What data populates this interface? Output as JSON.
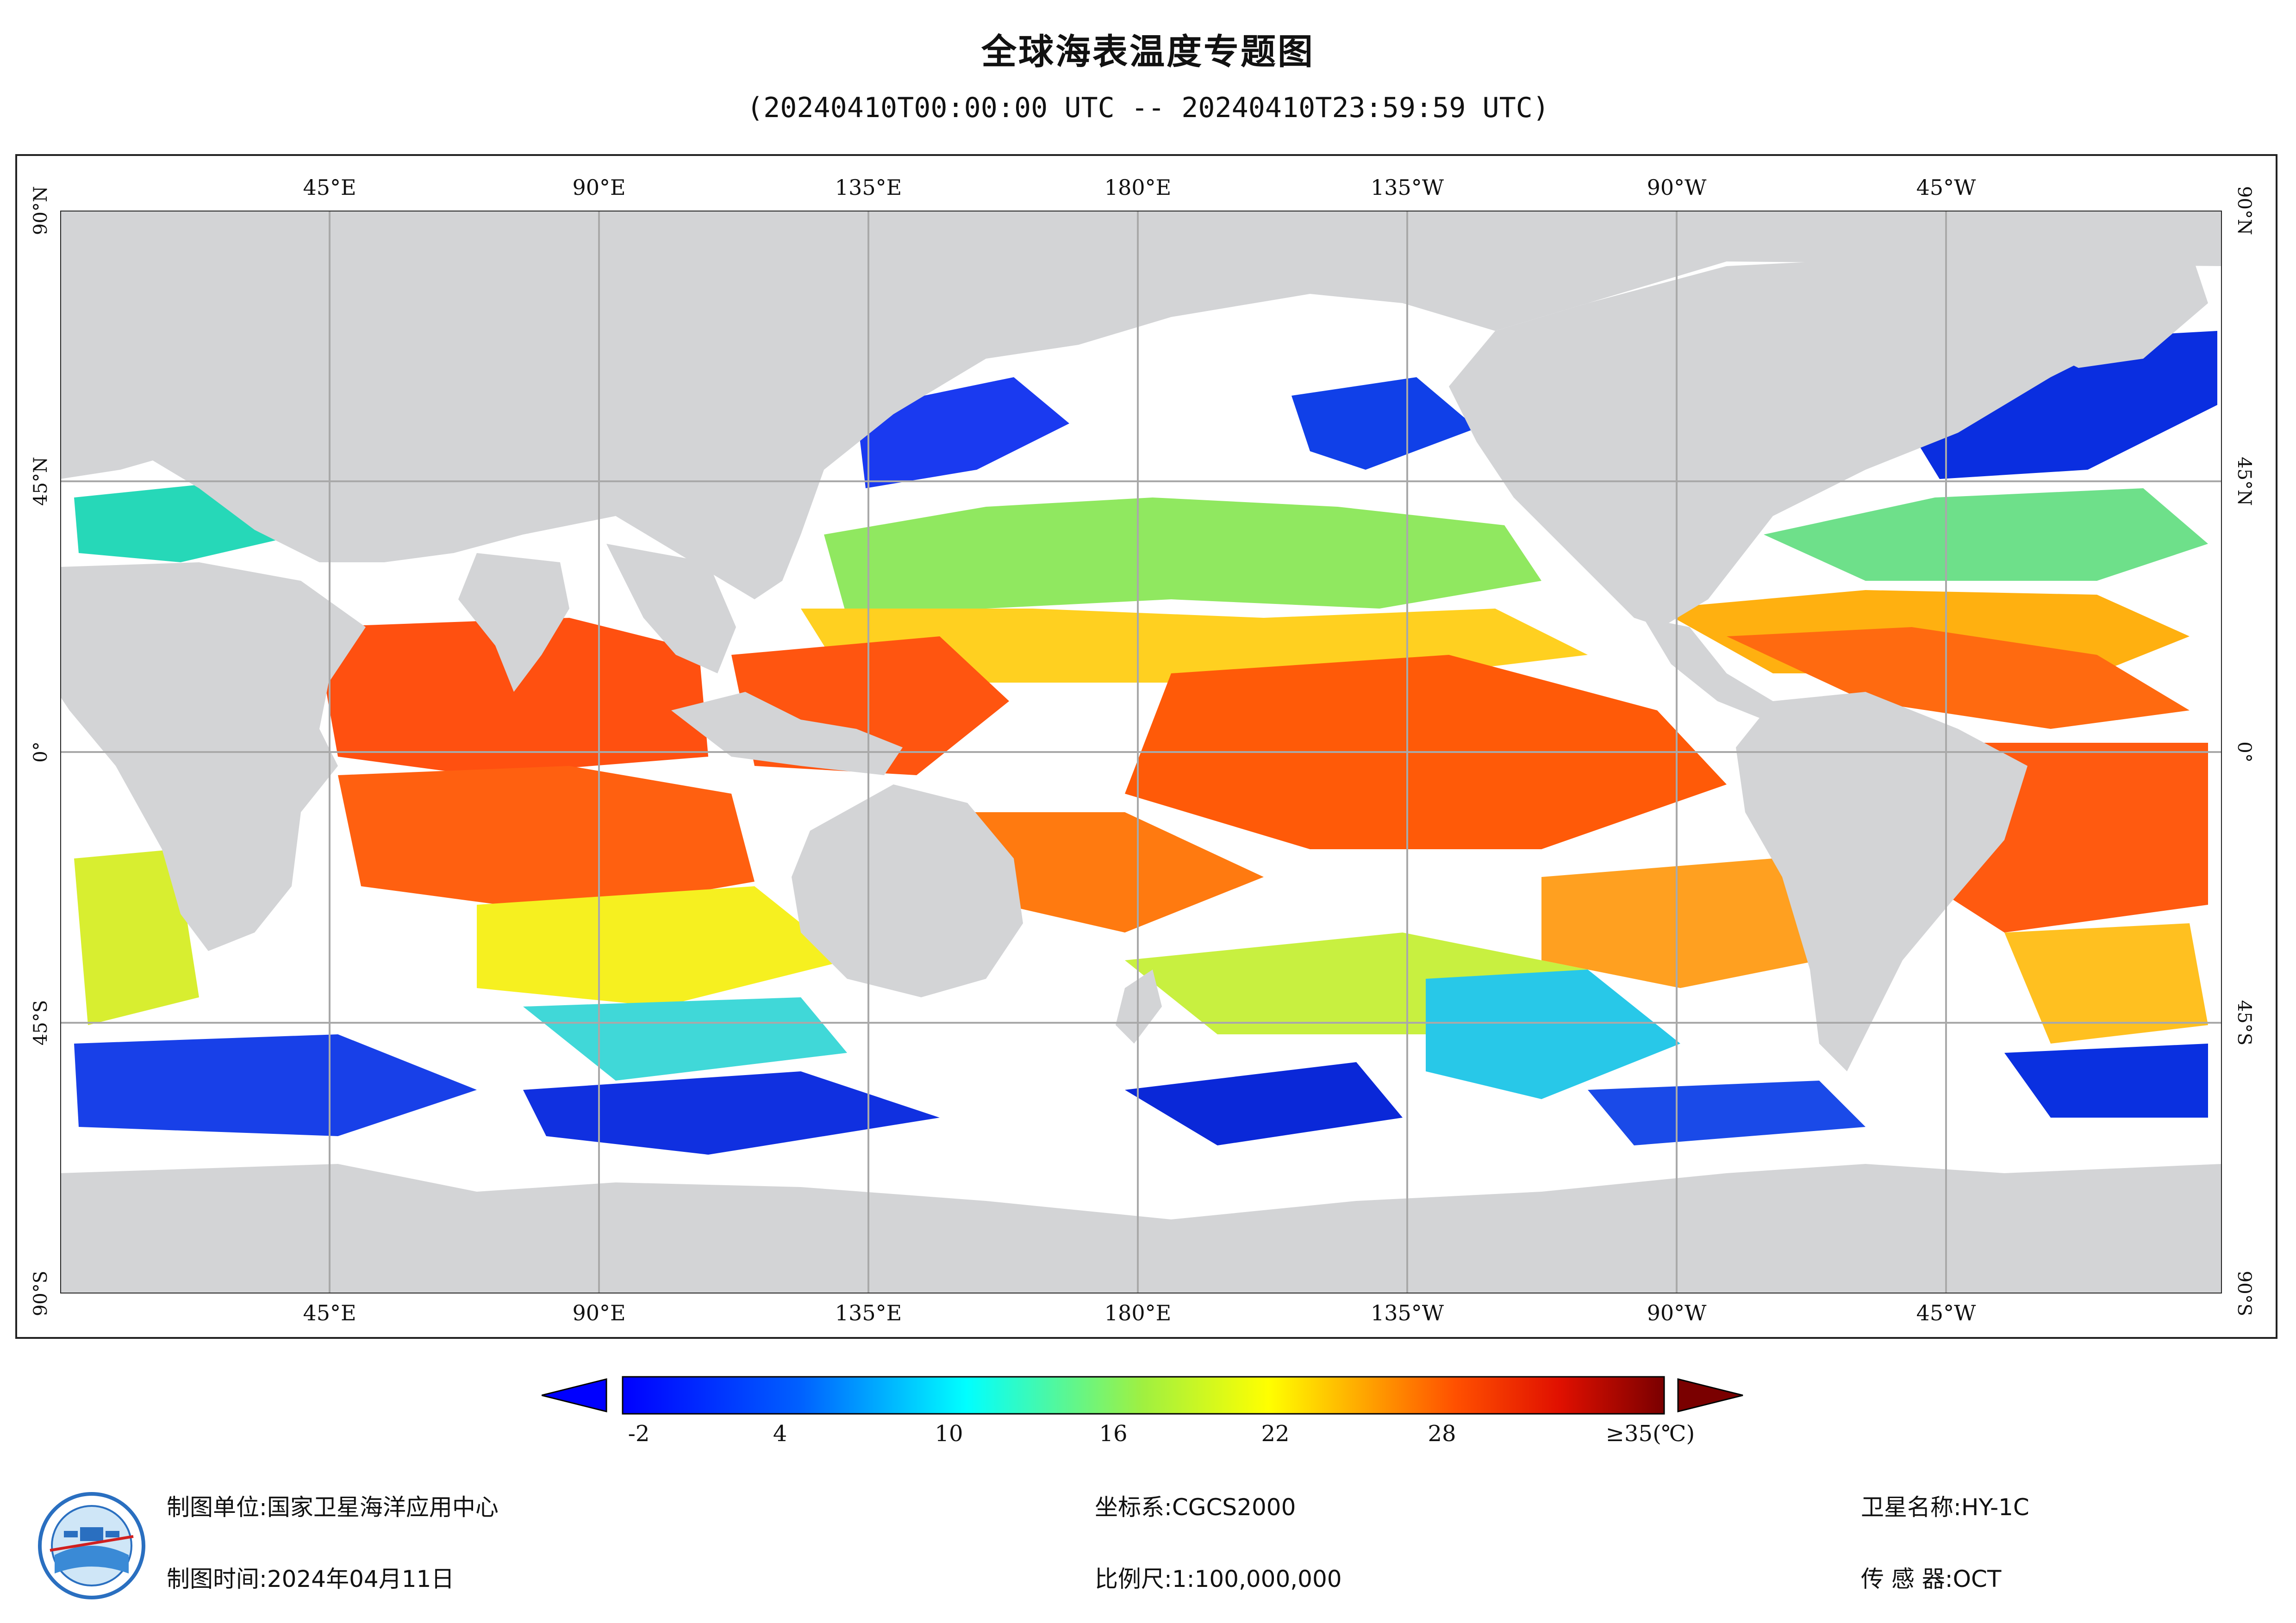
{
  "header": {
    "title": "全球海表温度专题图",
    "subtitle": "(20240410T00:00:00 UTC -- 20240410T23:59:59 UTC)"
  },
  "map": {
    "top_ticks": [
      "45°E",
      "90°E",
      "135°E",
      "180°E",
      "135°W",
      "90°W",
      "45°W"
    ],
    "bottom_ticks": [
      "45°E",
      "90°E",
      "135°E",
      "180°E",
      "135°W",
      "90°W",
      "45°W"
    ],
    "left_ticks": [
      "90°N",
      "45°N",
      "0°",
      "45°S",
      "90°S"
    ],
    "right_ticks": [
      "90°N",
      "45°N",
      "0°",
      "45°S",
      "90°S"
    ],
    "colors": {
      "land": "#d3d4d6",
      "nodata": "#ffffff",
      "grid": "#a9a9a9"
    }
  },
  "legend": {
    "labels": [
      "-2",
      "4",
      "10",
      "16",
      "22",
      "28",
      "≥35(℃)"
    ],
    "colors": {
      "low": "#0000ff",
      "mid": "#00ffff",
      "yellow": "#ffff00",
      "high": "#ff2000",
      "max": "#7a0000"
    }
  },
  "footer": {
    "org_label": "制图单位:",
    "org_value": "国家卫星海洋应用中心",
    "time_label": "制图时间:",
    "time_value": "2024年04月11日",
    "crs_label": "坐标系:",
    "crs_value": "CGCS2000",
    "scale_label": "比例尺:",
    "scale_value": "1:100,000,000",
    "sat_label": "卫星名称:",
    "sat_value": "HY-1C",
    "sensor_label": "传 感 器:",
    "sensor_value": "OCT"
  }
}
